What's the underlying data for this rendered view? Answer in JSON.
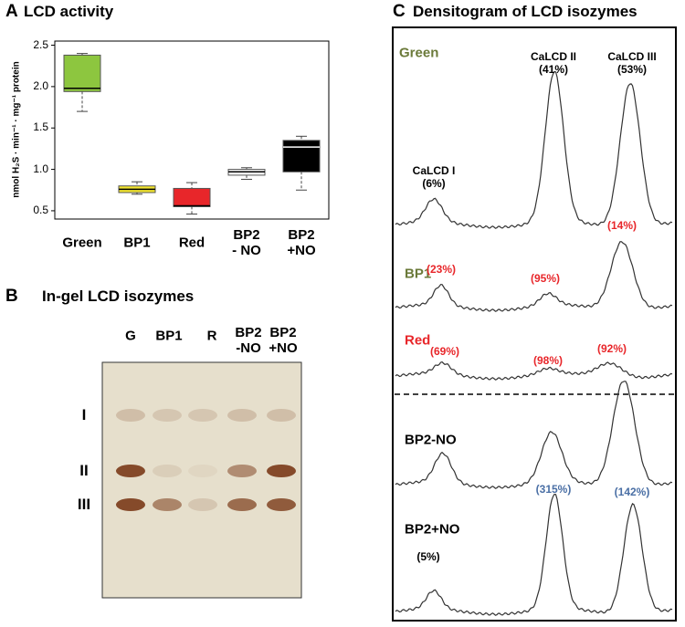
{
  "chart_data": {
    "type": "box",
    "panel": "A",
    "title": "LCD activity",
    "y_label": "nmol H₂S · min⁻¹ · mg⁻¹ protein",
    "categories": [
      "Green",
      "BP1",
      "Red",
      "BP2\n- NO",
      "BP2\n+NO"
    ],
    "boxes": [
      {
        "min": 1.7,
        "q1": 1.94,
        "median": 1.98,
        "q3": 2.38,
        "max": 2.4,
        "color": "#8dc63f"
      },
      {
        "min": 0.7,
        "q1": 0.72,
        "median": 0.76,
        "q3": 0.8,
        "max": 0.85,
        "color": "#f2e531"
      },
      {
        "min": 0.46,
        "q1": 0.55,
        "median": 0.56,
        "q3": 0.77,
        "max": 0.84,
        "color": "#e8262a"
      },
      {
        "min": 0.88,
        "q1": 0.93,
        "median": 0.97,
        "q3": 1.0,
        "max": 1.02,
        "color": "#ffffff"
      },
      {
        "min": 0.75,
        "q1": 0.97,
        "median": 1.27,
        "q3": 1.35,
        "max": 1.4,
        "color": "#000000"
      }
    ],
    "ylim": [
      0.4,
      2.55
    ],
    "yticks": [
      0.5,
      {
        "value": 1,
        "label": "1.0"
      },
      1.5,
      {
        "value": 2,
        "label": "2.0"
      },
      2.5
    ]
  },
  "gel": {
    "panel": "B",
    "title": "In-gel LCD isozymes",
    "lanes": [
      "G",
      "BP1",
      "R",
      "BP2\n-NO",
      "BP2\n+NO"
    ],
    "bands": [
      "I",
      "II",
      "III"
    ]
  },
  "densitogram": {
    "panel": "C",
    "title": "Densitogram of LCD isozymes",
    "traces": [
      {
        "name": "Green",
        "labels": [
          "CaLCD I\n(6%)",
          "CaLCD II\n(41%)",
          "CaLCD III\n(53%)"
        ]
      },
      {
        "name": "BP1",
        "labels": [
          "(23%)",
          "(95%)",
          "(14%)"
        ]
      },
      {
        "name": "Red",
        "labels": [
          "(69%)",
          "(98%)",
          "(92%)"
        ]
      },
      {
        "name": "BP2-NO",
        "labels": []
      },
      {
        "name": "BP2+NO",
        "labels": [
          "(5%)",
          "(315%)",
          "(142%)"
        ]
      }
    ]
  }
}
